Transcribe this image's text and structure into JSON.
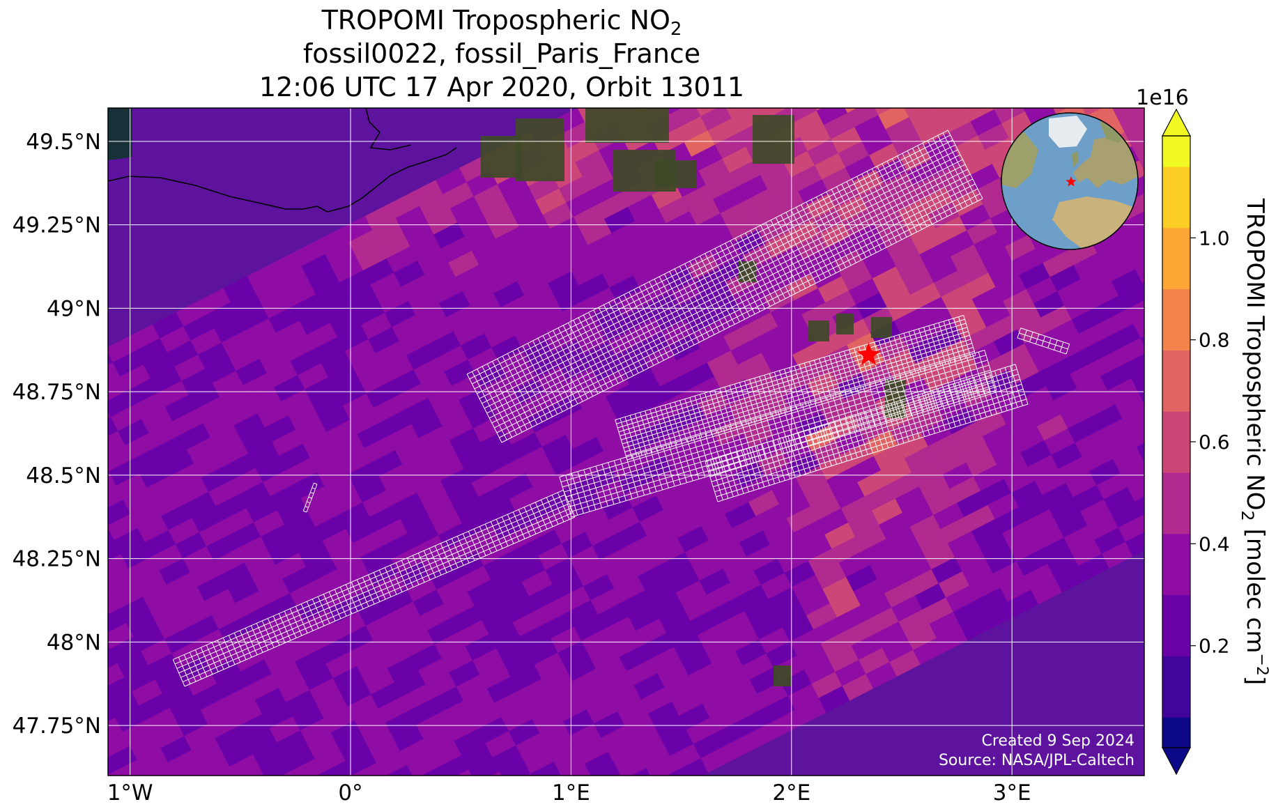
{
  "title": {
    "line1_main": "TROPOMI Tropospheric NO",
    "line1_sub": "2",
    "line2": "fossil0022, fossil_Paris_France",
    "line3": "12:06 UTC 17 Apr 2020, Orbit 13011"
  },
  "map": {
    "lon_range": [
      -1.1,
      3.6
    ],
    "lat_range": [
      47.6,
      49.6
    ],
    "lon_ticks": [
      {
        "value": -1,
        "label": "1°W"
      },
      {
        "value": 0,
        "label": "0°"
      },
      {
        "value": 1,
        "label": "1°E"
      },
      {
        "value": 2,
        "label": "2°E"
      },
      {
        "value": 3,
        "label": "3°E"
      }
    ],
    "lat_ticks": [
      {
        "value": 49.5,
        "label": "49.5°N"
      },
      {
        "value": 49.25,
        "label": "49.25°N"
      },
      {
        "value": 49,
        "label": "49°N"
      },
      {
        "value": 48.75,
        "label": "48.75°N"
      },
      {
        "value": 48.5,
        "label": "48.5°N"
      },
      {
        "value": 48.25,
        "label": "48.25°N"
      },
      {
        "value": 48,
        "label": "48°N"
      },
      {
        "value": 47.75,
        "label": "47.75°N"
      }
    ],
    "target_site": {
      "name": "Paris",
      "lon": 2.35,
      "lat": 48.86,
      "marker": "star",
      "color": "#ff0000"
    },
    "gridlines": true
  },
  "colorbar": {
    "label_main": "TROPOMI Tropospheric NO",
    "label_sub": "2",
    "label_units_a": " [molec cm",
    "label_units_sup": "−2",
    "label_units_b": "]",
    "exponent": "1e16",
    "min": 0,
    "max": 1.2,
    "ticks": [
      {
        "value": 0.2,
        "label": "0.2"
      },
      {
        "value": 0.4,
        "label": "0.4"
      },
      {
        "value": 0.6,
        "label": "0.6"
      },
      {
        "value": 0.8,
        "label": "0.8"
      },
      {
        "value": 1.0,
        "label": "1.0"
      }
    ],
    "colormap": "plasma",
    "extend": "both"
  },
  "inset_globe": {
    "marker": "star",
    "marker_color": "#ff0000"
  },
  "credits": {
    "created": "Created 9 Sep 2024",
    "source": "Source: NASA/JPL-Caltech"
  },
  "colors": {
    "plasma": [
      "#0d0887",
      "#41049d",
      "#6a00a8",
      "#8f0da4",
      "#b12a90",
      "#cc4778",
      "#e16462",
      "#f2844b",
      "#fca636",
      "#fcce25",
      "#f0f921"
    ],
    "grid": "#ffffff",
    "ocean": "#163238",
    "land_imagery": "#3f4a28",
    "coastline": "#000000",
    "globe_ocean": "#6d9fc9",
    "globe_land": "#a9a071"
  }
}
